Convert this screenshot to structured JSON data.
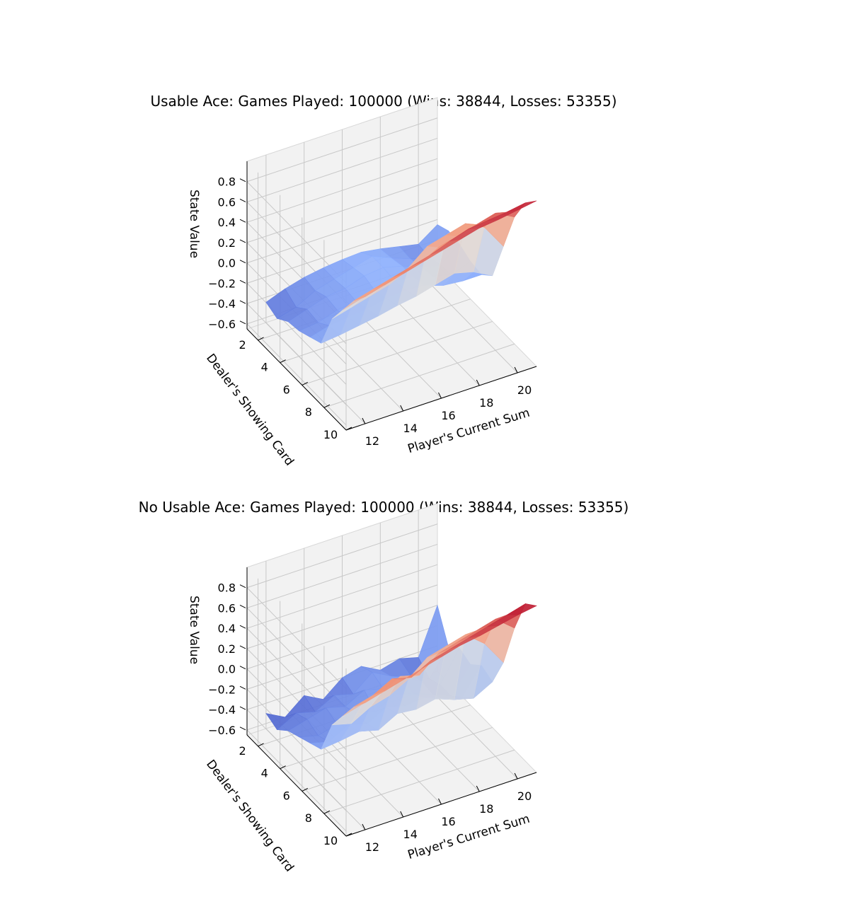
{
  "chart_data": [
    {
      "type": "surface3d",
      "title": "Usable Ace: Games Played: 100000 (Wins: 38844, Losses: 53355)",
      "xlabel": "Player's Current Sum",
      "ylabel": "Dealer's Showing Card",
      "zlabel": "State Value",
      "xlim": [
        11,
        21
      ],
      "ylim": [
        1,
        10
      ],
      "zlim": [
        -0.65,
        1.0
      ],
      "x_ticks": [
        12,
        14,
        16,
        18,
        20
      ],
      "y_ticks": [
        2,
        4,
        6,
        8,
        10
      ],
      "z_ticks": [
        -0.6,
        -0.4,
        -0.2,
        0.0,
        0.2,
        0.4,
        0.6,
        0.8
      ],
      "z_tick_labels": [
        "−0.6",
        "−0.4",
        "−0.2",
        "0.0",
        "0.2",
        "0.4",
        "0.6",
        "0.8"
      ],
      "x": [
        12,
        13,
        14,
        15,
        16,
        17,
        18,
        19,
        20,
        21
      ],
      "y": [
        1,
        2,
        3,
        4,
        5,
        6,
        7,
        8,
        9,
        10
      ],
      "z": [
        [
          -0.45,
          -0.38,
          -0.33,
          -0.3,
          -0.28,
          -0.27,
          -0.3,
          -0.34,
          -0.38,
          -0.25
        ],
        [
          -0.5,
          -0.45,
          -0.35,
          -0.3,
          -0.25,
          -0.2,
          -0.28,
          -0.35,
          -0.4,
          -0.2
        ],
        [
          -0.42,
          -0.36,
          -0.3,
          -0.28,
          -0.22,
          -0.2,
          -0.25,
          -0.32,
          -0.36,
          -0.22
        ],
        [
          -0.4,
          -0.38,
          -0.32,
          -0.3,
          -0.26,
          -0.22,
          -0.24,
          -0.3,
          -0.35,
          -0.28
        ],
        [
          -0.35,
          -0.3,
          -0.28,
          -0.26,
          -0.22,
          -0.2,
          -0.22,
          -0.28,
          -0.3,
          -0.3
        ],
        [
          -0.3,
          -0.28,
          -0.25,
          -0.22,
          -0.18,
          -0.15,
          -0.1,
          -0.05,
          -0.1,
          -0.2
        ],
        [
          0.05,
          0.1,
          0.15,
          0.2,
          0.3,
          0.45,
          0.5,
          0.55,
          0.45,
          0.2
        ],
        [
          0.25,
          0.3,
          0.35,
          0.4,
          0.45,
          0.55,
          0.6,
          0.65,
          0.7,
          0.6
        ],
        [
          0.45,
          0.5,
          0.55,
          0.6,
          0.65,
          0.72,
          0.78,
          0.8,
          0.82,
          0.85
        ],
        [
          0.6,
          0.65,
          0.7,
          0.75,
          0.8,
          0.85,
          0.9,
          0.92,
          0.95,
          0.98
        ]
      ]
    },
    {
      "type": "surface3d",
      "title": "No Usable Ace: Games Played: 100000 (Wins: 38844, Losses: 53355)",
      "xlabel": "Player's Current Sum",
      "ylabel": "Dealer's Showing Card",
      "zlabel": "State Value",
      "xlim": [
        11,
        21
      ],
      "ylim": [
        1,
        10
      ],
      "zlim": [
        -0.65,
        1.0
      ],
      "x_ticks": [
        12,
        14,
        16,
        18,
        20
      ],
      "y_ticks": [
        2,
        4,
        6,
        8,
        10
      ],
      "z_ticks": [
        -0.6,
        -0.4,
        -0.2,
        0.0,
        0.2,
        0.4,
        0.6,
        0.8
      ],
      "z_tick_labels": [
        "−0.6",
        "−0.4",
        "−0.2",
        "0.0",
        "0.2",
        "0.4",
        "0.6",
        "0.8"
      ],
      "x": [
        12,
        13,
        14,
        15,
        16,
        17,
        18,
        19,
        20,
        21
      ],
      "y": [
        1,
        2,
        3,
        4,
        5,
        6,
        7,
        8,
        9,
        10
      ],
      "z": [
        [
          -0.5,
          -0.6,
          -0.45,
          -0.55,
          -0.4,
          -0.35,
          -0.45,
          -0.4,
          -0.45,
          0.0
        ],
        [
          -0.55,
          -0.45,
          -0.5,
          -0.4,
          -0.45,
          -0.3,
          -0.4,
          -0.45,
          -0.55,
          -0.3
        ],
        [
          -0.45,
          -0.4,
          -0.35,
          -0.4,
          -0.3,
          -0.35,
          -0.3,
          -0.4,
          -0.5,
          -0.2
        ],
        [
          -0.4,
          -0.45,
          -0.4,
          -0.35,
          -0.4,
          -0.3,
          -0.35,
          -0.42,
          -0.5,
          -0.25
        ],
        [
          -0.35,
          -0.4,
          -0.3,
          -0.35,
          -0.25,
          -0.3,
          -0.28,
          -0.35,
          -0.4,
          -0.15
        ],
        [
          -0.3,
          -0.28,
          -0.25,
          -0.3,
          -0.2,
          -0.22,
          -0.18,
          -0.25,
          -0.3,
          -0.2
        ],
        [
          0.05,
          0.0,
          0.1,
          0.15,
          0.25,
          0.4,
          0.45,
          0.5,
          0.35,
          0.1
        ],
        [
          0.25,
          0.3,
          0.35,
          0.45,
          0.4,
          0.55,
          0.6,
          0.65,
          0.7,
          0.55
        ],
        [
          0.45,
          0.5,
          0.6,
          0.55,
          0.65,
          0.7,
          0.75,
          0.8,
          0.85,
          0.9
        ],
        [
          0.6,
          0.65,
          0.7,
          0.75,
          0.8,
          0.85,
          0.88,
          0.92,
          0.96,
          0.99
        ]
      ]
    }
  ]
}
